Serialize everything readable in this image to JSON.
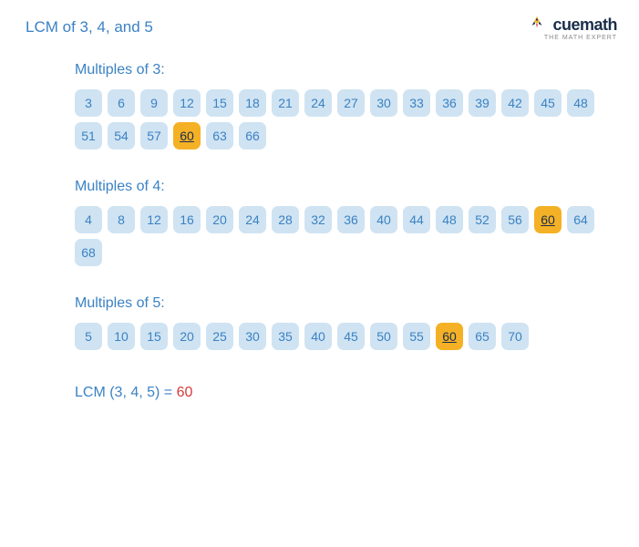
{
  "title": "LCM of 3, 4, and 5",
  "logo": {
    "text": "cuemath",
    "tagline": "THE MATH EXPERT"
  },
  "chip_style": {
    "normal_bg": "#cfe3f2",
    "normal_fg": "#3b82c4",
    "highlight_bg": "#f5b125",
    "highlight_fg": "#1a2e4a"
  },
  "sections": [
    {
      "label": "Multiples of 3:",
      "values": [
        3,
        6,
        9,
        12,
        15,
        18,
        21,
        24,
        27,
        30,
        33,
        36,
        39,
        42,
        45,
        48,
        51,
        54,
        57,
        60,
        63,
        66
      ],
      "highlight": 60
    },
    {
      "label": "Multiples of 4:",
      "values": [
        4,
        8,
        12,
        16,
        20,
        24,
        28,
        32,
        36,
        40,
        44,
        48,
        52,
        56,
        60,
        64,
        68
      ],
      "highlight": 60
    },
    {
      "label": "Multiples of 5:",
      "values": [
        5,
        10,
        15,
        20,
        25,
        30,
        35,
        40,
        45,
        50,
        55,
        60,
        65,
        70
      ],
      "highlight": 60
    }
  ],
  "result": {
    "label": "LCM (3, 4, 5)",
    "equals": " = ",
    "value": "60"
  }
}
